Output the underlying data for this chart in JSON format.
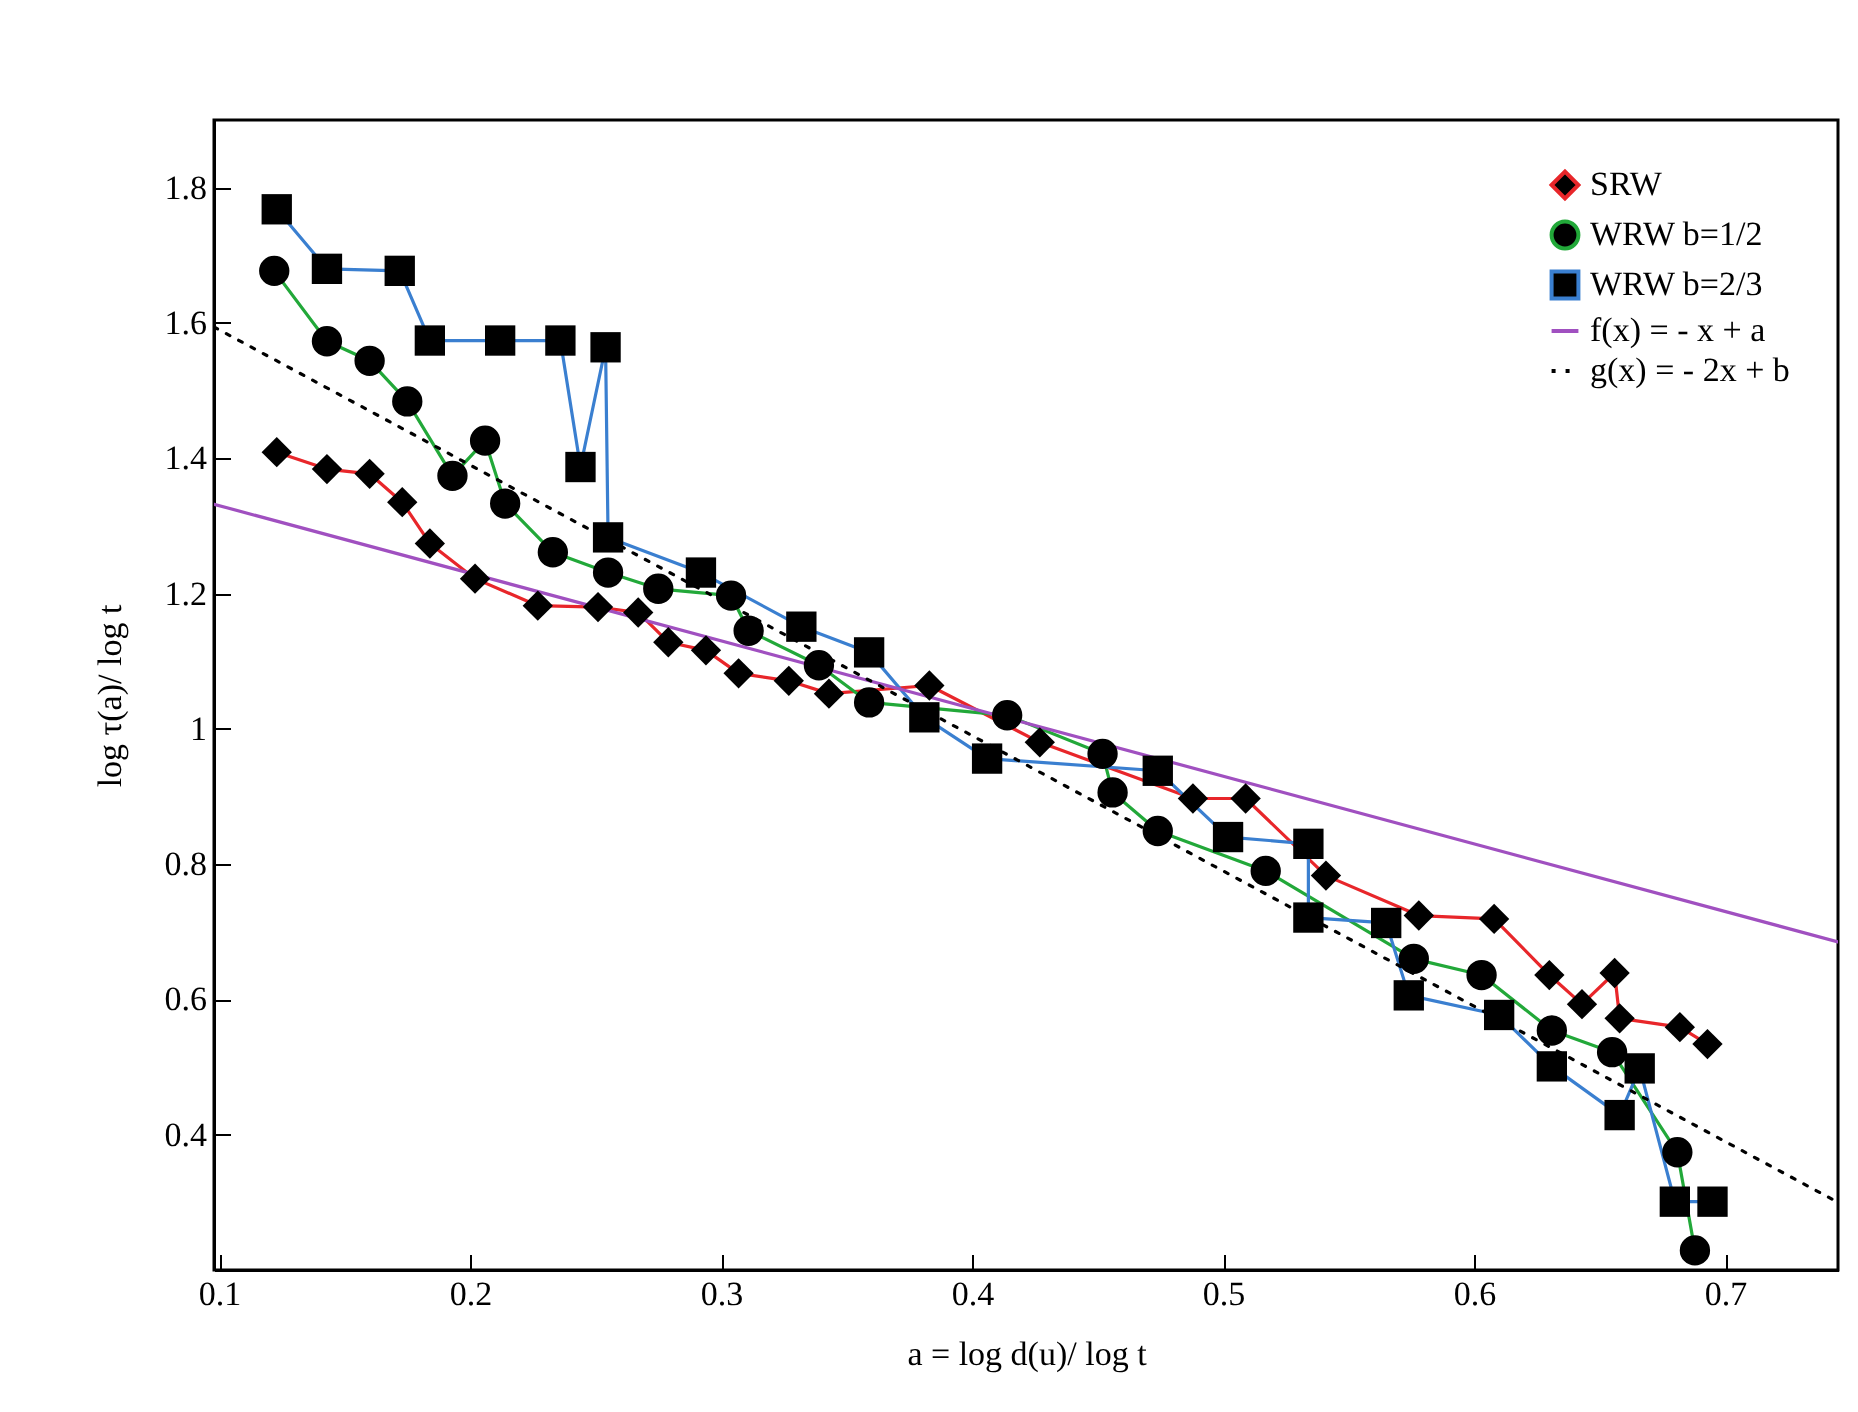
{
  "chart_data": {
    "type": "line",
    "xlabel": "a = log d(u)/ log t",
    "ylabel": "log τ(a)/ log t",
    "xlim": [
      0.098,
      0.745
    ],
    "ylim": [
      0.2,
      1.9
    ],
    "xticks": [
      0.1,
      0.2,
      0.3,
      0.4,
      0.5,
      0.6,
      0.7
    ],
    "yticks": [
      0.4,
      0.6,
      0.8,
      1,
      1.2,
      1.4,
      1.6,
      1.8
    ],
    "legend": "top right",
    "series": [
      {
        "name": "SRW",
        "color": "#e8262a",
        "marker": "diamond",
        "x": [
          0.123,
          0.143,
          0.16,
          0.173,
          0.184,
          0.202,
          0.227,
          0.251,
          0.267,
          0.279,
          0.294,
          0.307,
          0.327,
          0.343,
          0.383,
          0.427,
          0.488,
          0.509,
          0.541,
          0.578,
          0.608,
          0.63,
          0.643,
          0.656,
          0.658,
          0.682,
          0.693
        ],
        "values": [
          1.409,
          1.384,
          1.377,
          1.335,
          1.274,
          1.222,
          1.182,
          1.18,
          1.172,
          1.128,
          1.116,
          1.082,
          1.071,
          1.052,
          1.064,
          0.98,
          0.897,
          0.897,
          0.783,
          0.724,
          0.719,
          0.636,
          0.593,
          0.639,
          0.572,
          0.559,
          0.534
        ]
      },
      {
        "name": "WRW b=1/2",
        "color": "#22a839",
        "marker": "circle",
        "x": [
          0.122,
          0.143,
          0.16,
          0.175,
          0.193,
          0.206,
          0.214,
          0.233,
          0.255,
          0.275,
          0.304,
          0.311,
          0.339,
          0.359,
          0.414,
          0.452,
          0.456,
          0.474,
          0.517,
          0.576,
          0.603,
          0.631,
          0.655,
          0.681,
          0.688
        ],
        "values": [
          1.677,
          1.573,
          1.544,
          1.484,
          1.374,
          1.426,
          1.333,
          1.261,
          1.231,
          1.207,
          1.197,
          1.145,
          1.094,
          1.039,
          1.02,
          0.963,
          0.906,
          0.849,
          0.79,
          0.66,
          0.636,
          0.554,
          0.522,
          0.374,
          0.229
        ]
      },
      {
        "name": "WRW b=2/3",
        "color": "#3a7fd0",
        "marker": "square",
        "x": [
          0.123,
          0.143,
          0.172,
          0.184,
          0.212,
          0.236,
          0.244,
          0.254,
          0.255,
          0.292,
          0.332,
          0.359,
          0.381,
          0.406,
          0.474,
          0.502,
          0.534,
          0.534,
          0.565,
          0.574,
          0.61,
          0.631,
          0.658,
          0.666,
          0.68,
          0.695
        ],
        "values": [
          1.768,
          1.68,
          1.677,
          1.574,
          1.574,
          1.574,
          1.387,
          1.564,
          1.283,
          1.231,
          1.151,
          1.113,
          1.017,
          0.956,
          0.938,
          0.84,
          0.83,
          0.721,
          0.713,
          0.606,
          0.577,
          0.501,
          0.429,
          0.498,
          0.301,
          0.301
        ]
      },
      {
        "name": "f(x) = - x + a",
        "color": "#a050c0",
        "marker": "none",
        "x": [
          0.098,
          0.745
        ],
        "values": [
          1.332,
          0.685
        ]
      },
      {
        "name": "g(x) = - 2x + b",
        "color": "#000000",
        "marker": "none",
        "line_style": "dotted",
        "x": [
          0.098,
          0.745
        ],
        "values": [
          1.594,
          0.3
        ]
      }
    ]
  }
}
